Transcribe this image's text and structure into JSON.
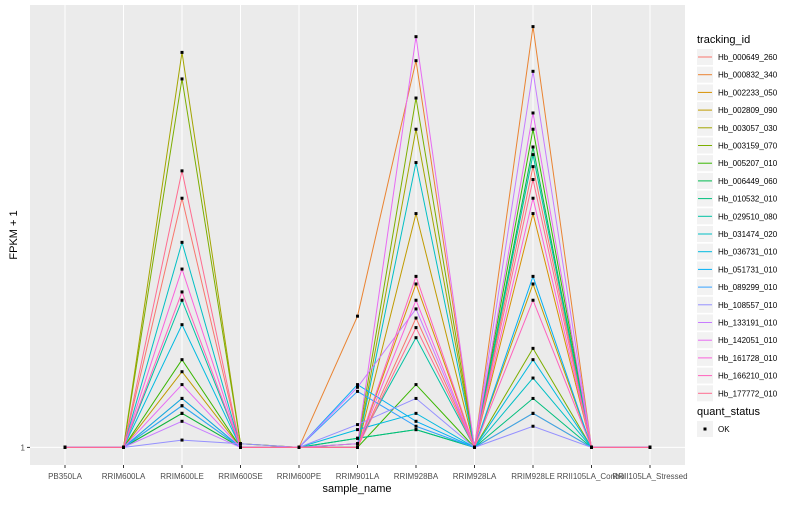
{
  "chart_data": {
    "type": "line",
    "x_label": "sample_name",
    "y_label": "FPKM + 1",
    "categories": [
      "PB350LA",
      "RRIM600LA",
      "RRIM600LE",
      "RRIM600SE",
      "RRIM600PE",
      "RRIM901LA",
      "RRIM928BA",
      "RRIM928LA",
      "RRIM928LE",
      "RRII105LA_Control",
      "RRII105LA_Stressed"
    ],
    "ylog": true,
    "ylim": [
      0.91,
      10.7
    ],
    "yticks": [
      1
    ],
    "grid": true,
    "legend_title": "tracking_id",
    "legend_position": "right",
    "point_color": "#000000",
    "point_legend": {
      "title": "quant_status",
      "labels": [
        "OK"
      ]
    },
    "series": [
      {
        "name": "Hb_000649_260",
        "color": "#F8766D",
        "values": [
          1,
          1,
          3.8,
          1,
          1,
          1,
          2.0,
          1,
          4.5,
          1,
          1
        ]
      },
      {
        "name": "Hb_000832_340",
        "color": "#EA8331",
        "values": [
          1,
          1,
          1.3,
          1,
          1,
          2.02,
          7.94,
          1,
          9.53,
          1,
          1
        ]
      },
      {
        "name": "Hb_002233_050",
        "color": "#D89000",
        "values": [
          1,
          1,
          1.2,
          1,
          1,
          1,
          2.4,
          1,
          3.5,
          1,
          1
        ]
      },
      {
        "name": "Hb_002809_090",
        "color": "#C09B00",
        "values": [
          1,
          1,
          1.5,
          1,
          1,
          1,
          3.5,
          1,
          2.4,
          1,
          1
        ]
      },
      {
        "name": "Hb_003057_030",
        "color": "#A3A500",
        "values": [
          1,
          1,
          8.3,
          1.02,
          1,
          1,
          5.5,
          1,
          1.2,
          1,
          1
        ]
      },
      {
        "name": "Hb_003159_070",
        "color": "#7CAE00",
        "values": [
          1,
          1,
          7.2,
          1.02,
          1,
          1.02,
          6.5,
          1,
          1.7,
          1,
          1
        ]
      },
      {
        "name": "Hb_005207_010",
        "color": "#39B600",
        "values": [
          1,
          1,
          1.6,
          1,
          1,
          1,
          1.4,
          1,
          5.5,
          1,
          1
        ]
      },
      {
        "name": "Hb_006449_060",
        "color": "#00BB4E",
        "values": [
          1,
          1,
          1.2,
          1,
          1,
          1.05,
          1.1,
          1,
          5.0,
          1,
          1
        ]
      },
      {
        "name": "Hb_010532_010",
        "color": "#00BF7D",
        "values": [
          1,
          1,
          1.25,
          1,
          1,
          1.05,
          1.1,
          1,
          1.3,
          1,
          1
        ]
      },
      {
        "name": "Hb_029510_080",
        "color": "#00C1A3",
        "values": [
          1,
          1,
          2.2,
          1,
          1,
          1.02,
          1.8,
          1,
          4.8,
          1,
          1
        ]
      },
      {
        "name": "Hb_031474_020",
        "color": "#00BFC4",
        "values": [
          1,
          1,
          3.0,
          1,
          1,
          1,
          4.6,
          1,
          1.45,
          1,
          1
        ]
      },
      {
        "name": "Hb_036731_010",
        "color": "#00BAE0",
        "values": [
          1,
          1,
          1.93,
          1,
          1,
          1.1,
          1.2,
          1,
          1.6,
          1,
          1
        ]
      },
      {
        "name": "Hb_051731_010",
        "color": "#00B0F6",
        "values": [
          1,
          1,
          1.3,
          1,
          1,
          1.4,
          1.15,
          1,
          2.5,
          1,
          1
        ]
      },
      {
        "name": "Hb_089299_010",
        "color": "#35A2FF",
        "values": [
          1,
          1,
          1.25,
          1,
          1,
          1.35,
          1.12,
          1,
          1.2,
          1,
          1
        ]
      },
      {
        "name": "Hb_108557_010",
        "color": "#9590FF",
        "values": [
          1,
          1,
          1.04,
          1.02,
          1,
          1.13,
          1.3,
          1,
          1.12,
          1,
          1
        ]
      },
      {
        "name": "Hb_133191_010",
        "color": "#C77CFF",
        "values": [
          1,
          1,
          1.15,
          1,
          1,
          1.38,
          2.1,
          1,
          7.5,
          1,
          1
        ]
      },
      {
        "name": "Hb_142051_010",
        "color": "#E76BF3",
        "values": [
          1,
          1,
          1.4,
          1,
          1,
          1.02,
          9.03,
          1,
          6.0,
          1,
          1
        ]
      },
      {
        "name": "Hb_161728_010",
        "color": "#FA62DB",
        "values": [
          1,
          1,
          2.6,
          1,
          1,
          1,
          2.2,
          1,
          3.8,
          1,
          1
        ]
      },
      {
        "name": "Hb_166210_010",
        "color": "#FF62BC",
        "values": [
          1,
          1,
          2.3,
          1,
          1,
          1,
          2.5,
          1,
          2.2,
          1,
          1
        ]
      },
      {
        "name": "Hb_177772_010",
        "color": "#FF6C90",
        "values": [
          1,
          1,
          4.4,
          1,
          1,
          1,
          1.9,
          1,
          4.2,
          1,
          1
        ]
      }
    ]
  }
}
